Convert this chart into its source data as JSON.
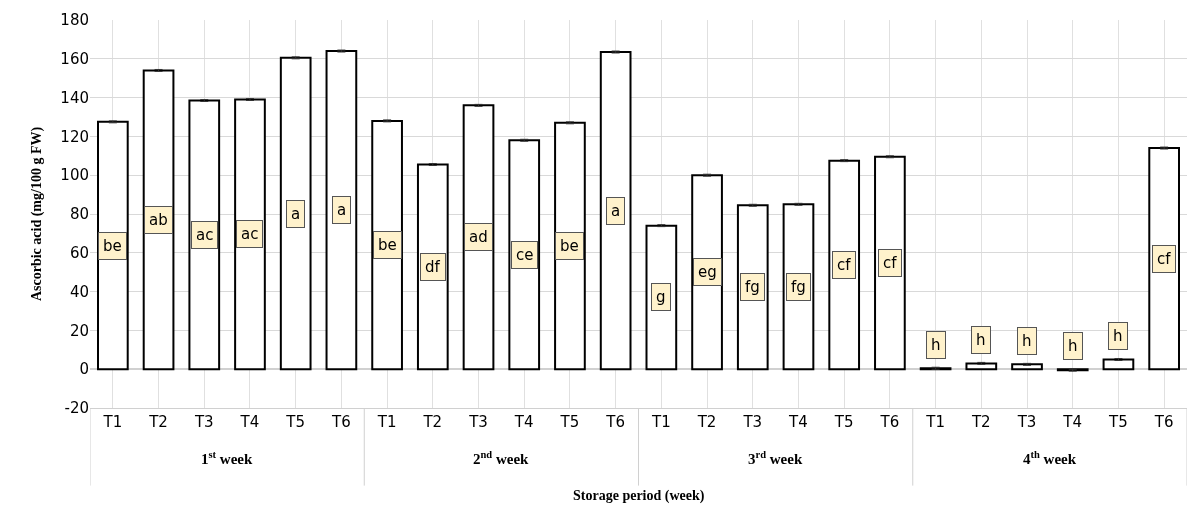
{
  "chart_data": {
    "type": "bar",
    "xlabel": "Storage period (week)",
    "ylabel": "Ascorbic acid (mg/100 g FW)",
    "categories": [
      "T1",
      "T2",
      "T3",
      "T4",
      "T5",
      "T6",
      "T1",
      "T2",
      "T3",
      "T4",
      "T5",
      "T6",
      "T1",
      "T2",
      "T3",
      "T4",
      "T5",
      "T6",
      "T1",
      "T2",
      "T3",
      "T4",
      "T5",
      "T6"
    ],
    "values": [
      127.5,
      154,
      138.5,
      139,
      160.5,
      164,
      128,
      105.5,
      136,
      118,
      127,
      163.5,
      74,
      100,
      84.5,
      85,
      107.5,
      109.5,
      0.5,
      3,
      2.5,
      -0.5,
      5,
      114
    ],
    "errors": [
      0.5,
      0.5,
      0.5,
      0.5,
      0.5,
      0.5,
      0.5,
      0.5,
      0.5,
      0.5,
      0.5,
      0.5,
      0.5,
      0.5,
      0.5,
      0.5,
      0.5,
      0.5,
      0.5,
      0.5,
      0.5,
      0.5,
      0.5,
      0.5
    ],
    "value_labels": [
      "be",
      "ab",
      "ac",
      "ac",
      "a",
      "a",
      "be",
      "df",
      "ad",
      "ce",
      "be",
      "a",
      "g",
      "eg",
      "fg",
      "fg",
      "cf",
      "cf",
      "h",
      "h",
      "h",
      "h",
      "h",
      "cf"
    ],
    "color": "#ffffff",
    "annotations": [
      "1$^{st}$ week",
      "2$^{nd}$ week",
      "3$^{rd}$ week",
      "4$^{th}$ week"
    ],
    "ylim": [
      -20,
      180
    ],
    "yticks": [
      -20,
      0,
      20,
      40,
      60,
      80,
      100,
      120,
      140,
      160,
      180
    ],
    "grid": true,
    "legend": false
  }
}
